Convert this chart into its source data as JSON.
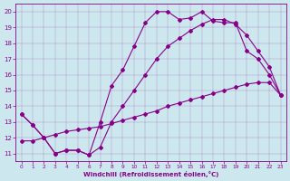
{
  "xlabel": "Windchill (Refroidissement éolien,°C)",
  "xlim": [
    -0.5,
    23.5
  ],
  "ylim": [
    10.5,
    20.5
  ],
  "xticks": [
    0,
    1,
    2,
    3,
    4,
    5,
    6,
    7,
    8,
    9,
    10,
    11,
    12,
    13,
    14,
    15,
    16,
    17,
    18,
    19,
    20,
    21,
    22,
    23
  ],
  "yticks": [
    11,
    12,
    13,
    14,
    15,
    16,
    17,
    18,
    19,
    20
  ],
  "bg_color": "#cce8ee",
  "line_color": "#880088",
  "line1_x": [
    0,
    1,
    2,
    3,
    4,
    5,
    6,
    7,
    8,
    9,
    10,
    11,
    12,
    13,
    14,
    15,
    16,
    17,
    18,
    19,
    20,
    21,
    22,
    23
  ],
  "line1_y": [
    13.5,
    12.8,
    12.0,
    11.0,
    11.2,
    11.2,
    10.9,
    13.0,
    15.3,
    16.3,
    17.8,
    19.3,
    20.0,
    20.0,
    19.5,
    19.6,
    20.0,
    19.4,
    19.3,
    19.3,
    17.5,
    17.0,
    16.0,
    14.7
  ],
  "line2_x": [
    0,
    1,
    2,
    3,
    4,
    5,
    6,
    7,
    8,
    9,
    10,
    11,
    12,
    13,
    14,
    15,
    16,
    17,
    18,
    19,
    20,
    21,
    22,
    23
  ],
  "line2_y": [
    13.5,
    12.8,
    12.0,
    11.0,
    11.2,
    11.2,
    10.9,
    11.4,
    13.0,
    14.0,
    15.0,
    16.0,
    17.0,
    17.8,
    18.3,
    18.8,
    19.2,
    19.5,
    19.5,
    19.2,
    18.5,
    17.5,
    16.5,
    14.7
  ],
  "line3_x": [
    0,
    1,
    2,
    3,
    4,
    5,
    6,
    7,
    8,
    9,
    10,
    11,
    12,
    13,
    14,
    15,
    16,
    17,
    18,
    19,
    20,
    21,
    22,
    23
  ],
  "line3_y": [
    11.8,
    11.8,
    12.0,
    12.2,
    12.4,
    12.5,
    12.6,
    12.7,
    12.9,
    13.1,
    13.3,
    13.5,
    13.7,
    14.0,
    14.2,
    14.4,
    14.6,
    14.8,
    15.0,
    15.2,
    15.4,
    15.5,
    15.5,
    14.7
  ]
}
